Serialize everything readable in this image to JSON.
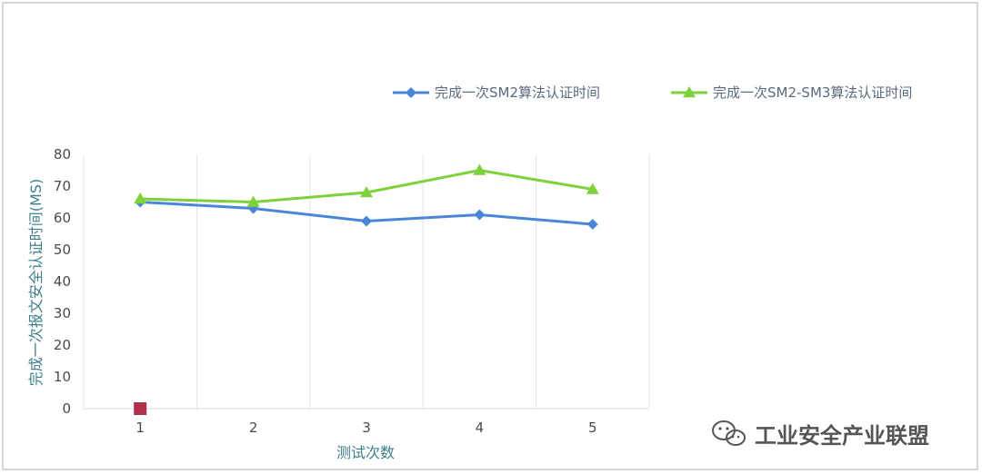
{
  "chart_data": {
    "type": "line",
    "categories": [
      "1",
      "2",
      "3",
      "4",
      "5"
    ],
    "series": [
      {
        "name": "完成一次SM2算法认证时间",
        "values": [
          65,
          63,
          59,
          61,
          58
        ],
        "color": "#4a86d8",
        "marker": "diamond"
      },
      {
        "name": "完成一次SM2-SM3算法认证时间",
        "values": [
          66,
          65,
          68,
          75,
          69
        ],
        "color": "#7ed13a",
        "marker": "triangle"
      }
    ],
    "extra_point": {
      "x": "1",
      "y": 0,
      "color": "#b0304a",
      "marker": "square"
    },
    "xlabel": "测试次数",
    "ylabel": "完成一次报文安全认证时间(MS)",
    "ylim": [
      0,
      80
    ],
    "yticks": [
      0,
      10,
      20,
      30,
      40,
      50,
      60,
      70,
      80
    ],
    "grid": "vertical",
    "legend_position": "top-right"
  },
  "watermark": {
    "text": "工业安全产业联盟",
    "icon": "wechat-icon"
  }
}
